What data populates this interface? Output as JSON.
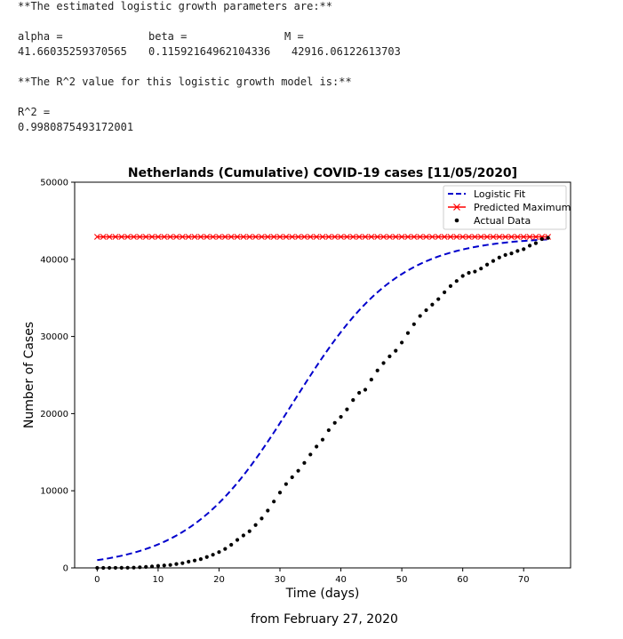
{
  "output": {
    "params_heading": "**The estimated logistic growth parameters are:**",
    "param_labels": [
      "alpha =",
      "beta =",
      "M ="
    ],
    "param_values": [
      "41.66035259370565",
      "0.11592164962104336",
      "42916.06122613703"
    ],
    "r2_heading": "**The R^2 value for this logistic growth model is:**",
    "r2_label": "R^2 =",
    "r2_value": "0.9980875493172001"
  },
  "chart_data": {
    "type": "line",
    "title": "Netherlands (Cumulative) COVID-19 cases [11/05/2020]",
    "xlabel": "Time (days)",
    "ylabel": "Number of Cases",
    "xlim": [
      -3.7,
      77.7
    ],
    "ylim": [
      0,
      50000
    ],
    "xticks": [
      0,
      10,
      20,
      30,
      40,
      50,
      60,
      70
    ],
    "yticks": [
      0,
      10000,
      20000,
      30000,
      40000,
      50000
    ],
    "legend_position": "top-right",
    "series": [
      {
        "name": "Logistic Fit",
        "style": "dashed-line",
        "color": "#0000cc",
        "model": {
          "alpha": 41.66035259370565,
          "beta": 0.11592164962104336,
          "M": 42916.06122613703,
          "x_from": 0,
          "x_to": 74
        }
      },
      {
        "name": "Predicted Maximum",
        "style": "line-x-markers",
        "color": "#ff0000",
        "x_from": 0,
        "x_to": 74,
        "value": 42916.06122613703
      },
      {
        "name": "Actual Data",
        "style": "dots",
        "color": "#000000",
        "x": [
          0,
          1,
          2,
          3,
          4,
          5,
          6,
          7,
          8,
          9,
          10,
          11,
          12,
          13,
          14,
          15,
          16,
          17,
          18,
          19,
          20,
          21,
          22,
          23,
          24,
          25,
          26,
          27,
          28,
          29,
          30,
          31,
          32,
          33,
          34,
          35,
          36,
          37,
          38,
          39,
          40,
          41,
          42,
          43,
          44,
          45,
          46,
          47,
          48,
          49,
          50,
          51,
          52,
          53,
          54,
          55,
          56,
          57,
          58,
          59,
          60,
          61,
          62,
          63,
          64,
          65,
          66,
          67,
          68,
          69,
          70,
          71,
          72,
          73,
          74
        ],
        "y": [
          1,
          2,
          7,
          10,
          18,
          24,
          38,
          82,
          128,
          188,
          265,
          321,
          382,
          503,
          614,
          804,
          959,
          1135,
          1413,
          1705,
          2051,
          2460,
          2994,
          3631,
          4204,
          4749,
          5560,
          6412,
          7431,
          8603,
          9762,
          10866,
          11750,
          12595,
          13614,
          14697,
          15723,
          16627,
          17851,
          18803,
          19580,
          20549,
          21762,
          22696,
          23097,
          24413,
          25587,
          26551,
          27419,
          28153,
          29214,
          30449,
          31589,
          32655,
          33405,
          34134,
          34842,
          35729,
          36535,
          37190,
          37845,
          38245,
          38416,
          38802,
          39316,
          39791,
          40236,
          40571,
          40770,
          41087,
          41319,
          41774,
          42093,
          42627,
          42788
        ]
      }
    ]
  },
  "caption": "from February 27, 2020"
}
